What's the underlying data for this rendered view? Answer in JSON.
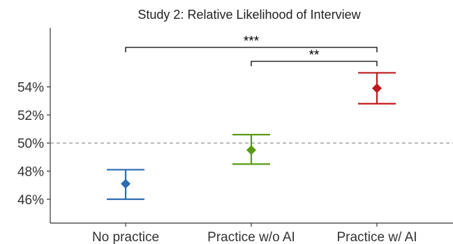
{
  "chart_data": {
    "type": "scatter",
    "title": "Study 2: Relative Likelihood of Interview",
    "xlabel": "",
    "ylabel": "",
    "categories": [
      "No practice",
      "Practice w/o AI",
      "Practice w/ AI"
    ],
    "series": [
      {
        "values": [
          47.1,
          49.5,
          53.9
        ],
        "ci_low": [
          46.0,
          48.5,
          52.8
        ],
        "ci_high": [
          48.1,
          50.6,
          55.0
        ],
        "colors": [
          "#2b6cb0",
          "#5a9a12",
          "#c0191c"
        ],
        "marker": "diamond"
      }
    ],
    "ylim": [
      44.3,
      58.2
    ],
    "yticks": [
      46,
      48,
      50,
      52,
      54
    ],
    "ytick_labels": [
      "46%",
      "48%",
      "50%",
      "52%",
      "54%"
    ],
    "reference_line": {
      "y": 50,
      "style": "dashed",
      "color": "#888888"
    },
    "significance": [
      {
        "from": "No practice",
        "to": "Practice w/ AI",
        "label": "***"
      },
      {
        "from": "Practice w/o AI",
        "to": "Practice w/ AI",
        "label": "**"
      }
    ],
    "grid": false,
    "legend": "none"
  }
}
